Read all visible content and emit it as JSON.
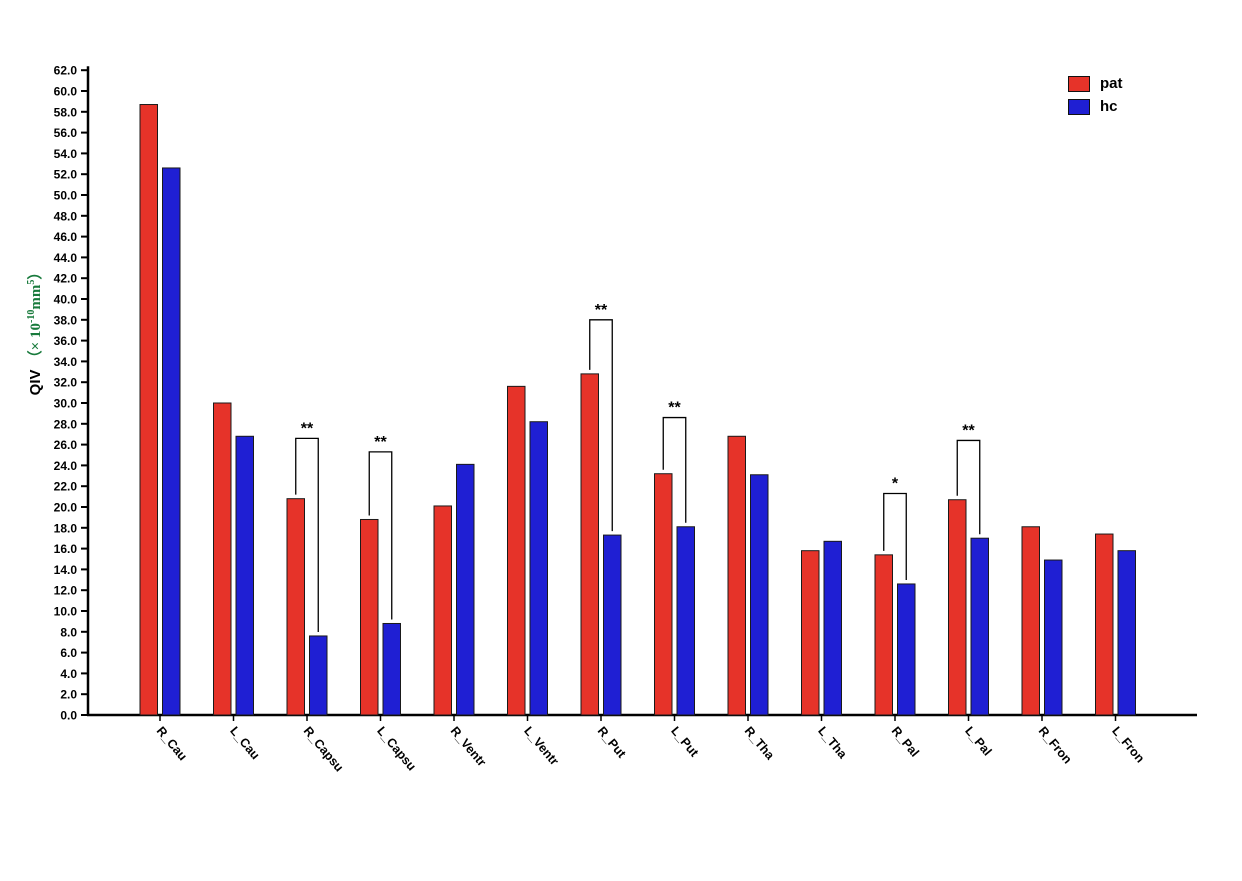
{
  "chart_data": {
    "type": "bar",
    "title": "",
    "categories": [
      "R_Cau",
      "L_Cau",
      "R_Capsu",
      "L_Capsu",
      "R_Ventr",
      "L_Ventr",
      "R_Put",
      "L_Put",
      "R_Tha",
      "L_Tha",
      "R_Pal",
      "L_Pal",
      "R_Fron",
      "L_Fron"
    ],
    "series": [
      {
        "name": "pat",
        "color": "#e63329",
        "values": [
          58.7,
          30.0,
          20.8,
          18.8,
          20.1,
          31.6,
          32.8,
          23.2,
          26.8,
          15.8,
          15.4,
          20.7,
          18.1,
          17.4
        ]
      },
      {
        "name": "hc",
        "color": "#1f1fd3",
        "values": [
          52.6,
          26.8,
          7.6,
          8.8,
          24.1,
          28.2,
          17.3,
          18.1,
          23.1,
          16.7,
          12.6,
          17.0,
          14.9,
          15.8
        ]
      }
    ],
    "significance": [
      {
        "category": "R_Capsu",
        "label": "**",
        "bracket_top": 26.6
      },
      {
        "category": "L_Capsu",
        "label": "**",
        "bracket_top": 25.3
      },
      {
        "category": "R_Put",
        "label": "**",
        "bracket_top": 38.0
      },
      {
        "category": "L_Put",
        "label": "**",
        "bracket_top": 28.6
      },
      {
        "category": "R_Pal",
        "label": "*",
        "bracket_top": 21.3
      },
      {
        "category": "L_Pal",
        "label": "**",
        "bracket_top": 26.4
      }
    ],
    "ylabel_main": "QIV",
    "ylabel_unit": {
      "open": "（× 10",
      "sup1": "-10",
      "mid": "mm",
      "sup2": "5",
      "close": "）"
    },
    "ylabel_unit_color": "#187a3c",
    "xlabel": "",
    "y_min": 0,
    "y_max": 62,
    "y_step": 2,
    "y_tick_format_decimals": 1,
    "grid": false,
    "legend": [
      "pat",
      "hc"
    ],
    "legend_position": "top-right",
    "axis_color": "#000000",
    "bar_outline_color": "#1a1a1a"
  }
}
